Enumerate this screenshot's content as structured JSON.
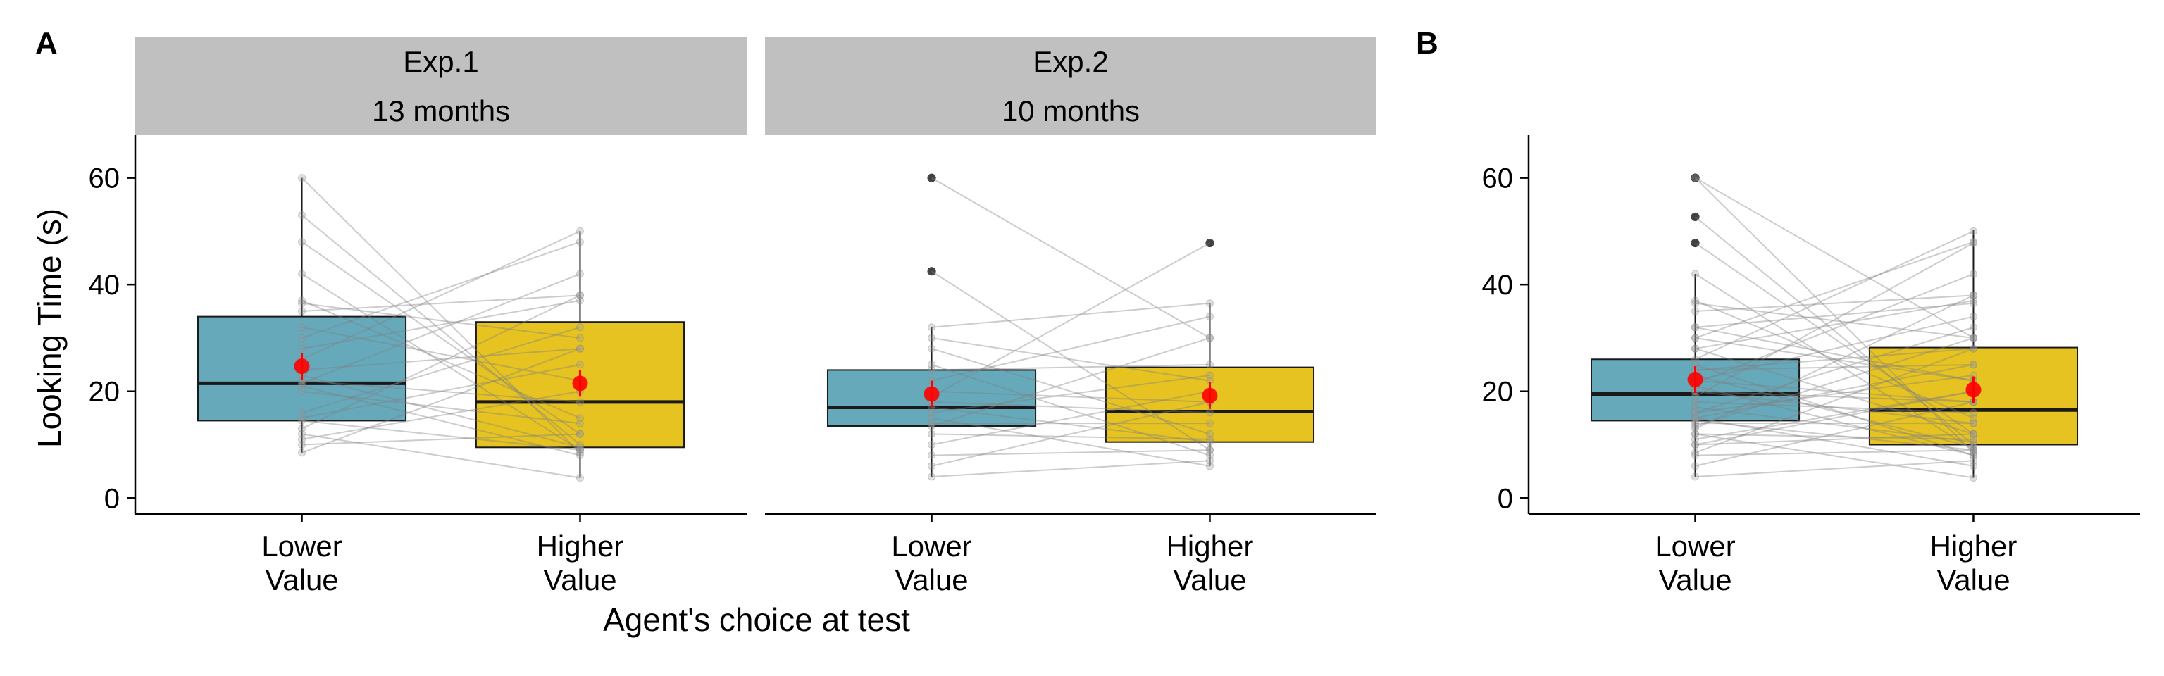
{
  "figure": {
    "panel_labels": [
      "A",
      "B"
    ],
    "shared_xlabel": "Agent's choice at test",
    "shared_ylabel": "Looking Time (s)"
  },
  "colors": {
    "lower_value_box": "#66A9BB",
    "higher_value_box": "#E6C321",
    "mean_point": "#FF0000",
    "facet_strip": "#C0C0C0",
    "pair_line": "#7F7F7F",
    "outlier": "#1A1A1A"
  },
  "chart_data": [
    {
      "type": "box",
      "panel": "A",
      "facet": [
        "Exp.1",
        "13 months"
      ],
      "categories": [
        "Lower\nValue",
        "Higher\nValue"
      ],
      "ylabel": "Looking Time (s)",
      "xlabel": "Agent's choice at test",
      "ylim": [
        -3,
        68
      ],
      "yticks": [
        0,
        20,
        40,
        60
      ],
      "boxes": [
        {
          "category": "Lower Value",
          "q1": 14.5,
          "median": 21.5,
          "q3": 34,
          "whisker_low": 8.5,
          "whisker_high": 60,
          "mean": 24.7,
          "outliers": []
        },
        {
          "category": "Higher Value",
          "q1": 9.5,
          "median": 18,
          "q3": 33,
          "whisker_low": 3.8,
          "whisker_high": 50,
          "mean": 21.5,
          "outliers": []
        }
      ],
      "pairs": [
        [
          60,
          8.5
        ],
        [
          53,
          10
        ],
        [
          48,
          12
        ],
        [
          42,
          9
        ],
        [
          37,
          15
        ],
        [
          36.5,
          30
        ],
        [
          35,
          38
        ],
        [
          32,
          22
        ],
        [
          30,
          48
        ],
        [
          28,
          37
        ],
        [
          26,
          50
        ],
        [
          24,
          28
        ],
        [
          23,
          9.5
        ],
        [
          22,
          18
        ],
        [
          21.5,
          42
        ],
        [
          21,
          8
        ],
        [
          20,
          14
        ],
        [
          16,
          32
        ],
        [
          15,
          25
        ],
        [
          14.5,
          9
        ],
        [
          13,
          38
        ],
        [
          12,
          3.8
        ],
        [
          11,
          20
        ],
        [
          10,
          12
        ],
        [
          8.5,
          28
        ]
      ]
    },
    {
      "type": "box",
      "panel": "A",
      "facet": [
        "Exp.2",
        "10 months"
      ],
      "categories": [
        "Lower\nValue",
        "Higher\nValue"
      ],
      "ylim": [
        -3,
        68
      ],
      "yticks": [
        0,
        20,
        40,
        60
      ],
      "boxes": [
        {
          "category": "Lower Value",
          "q1": 13.5,
          "median": 17,
          "q3": 24,
          "whisker_low": 4,
          "whisker_high": 32,
          "mean": 19.5,
          "outliers": [
            42.5,
            60
          ]
        },
        {
          "category": "Higher Value",
          "q1": 10.5,
          "median": 16.2,
          "q3": 24.5,
          "whisker_low": 6,
          "whisker_high": 36.5,
          "mean": 19.2,
          "outliers": [
            47.8
          ]
        }
      ],
      "pairs": [
        [
          60,
          30
        ],
        [
          42.5,
          9
        ],
        [
          32,
          36.5
        ],
        [
          30,
          22
        ],
        [
          28,
          12
        ],
        [
          25,
          8
        ],
        [
          24,
          25
        ],
        [
          22,
          34
        ],
        [
          20,
          18
        ],
        [
          19,
          47.8
        ],
        [
          18,
          16
        ],
        [
          17,
          10.5
        ],
        [
          16,
          23
        ],
        [
          15,
          6
        ],
        [
          14,
          14
        ],
        [
          13.5,
          30
        ],
        [
          12,
          11
        ],
        [
          10,
          20
        ],
        [
          8,
          9
        ],
        [
          6,
          18
        ],
        [
          4,
          7
        ]
      ]
    },
    {
      "type": "box",
      "panel": "B",
      "categories": [
        "Lower\nValue",
        "Higher\nValue"
      ],
      "ylim": [
        -3,
        68
      ],
      "yticks": [
        0,
        20,
        40,
        60
      ],
      "boxes": [
        {
          "category": "Lower Value",
          "q1": 14.5,
          "median": 19.5,
          "q3": 26,
          "whisker_low": 4,
          "whisker_high": 42,
          "mean": 22.2,
          "outliers": [
            47.8,
            52.7,
            60,
            60
          ]
        },
        {
          "category": "Higher Value",
          "q1": 10,
          "median": 16.5,
          "q3": 28.2,
          "whisker_low": 3.8,
          "whisker_high": 50.3,
          "mean": 20.3,
          "outliers": []
        }
      ],
      "pairs": [
        [
          60,
          8.5
        ],
        [
          60,
          30
        ],
        [
          52.7,
          10
        ],
        [
          47.8,
          12
        ],
        [
          42,
          9
        ],
        [
          37,
          15
        ],
        [
          36.5,
          30
        ],
        [
          35,
          38
        ],
        [
          32,
          22
        ],
        [
          32,
          36.5
        ],
        [
          30,
          48
        ],
        [
          30,
          22
        ],
        [
          28,
          37
        ],
        [
          28,
          12
        ],
        [
          26,
          50
        ],
        [
          25,
          8
        ],
        [
          24,
          28
        ],
        [
          24,
          25
        ],
        [
          23,
          9.5
        ],
        [
          22,
          18
        ],
        [
          22,
          34
        ],
        [
          21.5,
          42
        ],
        [
          21,
          8
        ],
        [
          20,
          14
        ],
        [
          20,
          18
        ],
        [
          19,
          47.8
        ],
        [
          18,
          16
        ],
        [
          17,
          10.5
        ],
        [
          16,
          32
        ],
        [
          16,
          23
        ],
        [
          15,
          25
        ],
        [
          15,
          6
        ],
        [
          14.5,
          9
        ],
        [
          14,
          14
        ],
        [
          13.5,
          30
        ],
        [
          13,
          38
        ],
        [
          12,
          3.8
        ],
        [
          12,
          11
        ],
        [
          11,
          20
        ],
        [
          10,
          12
        ],
        [
          10,
          20
        ],
        [
          8.5,
          28
        ],
        [
          8,
          9
        ],
        [
          6,
          18
        ],
        [
          4,
          7
        ]
      ]
    }
  ]
}
